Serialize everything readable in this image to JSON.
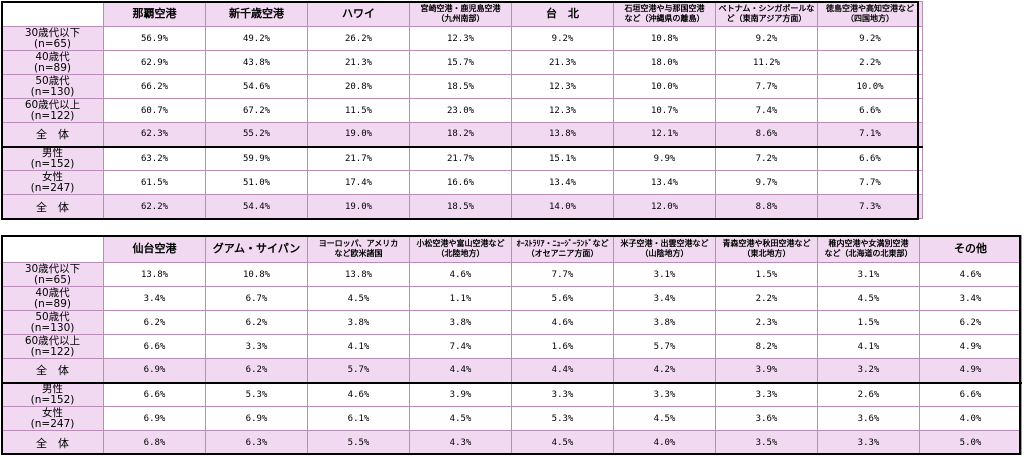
{
  "table1": {
    "headers": [
      "那覇空港",
      "新千歳空港",
      "ハワイ",
      "宮崎空港・鹿児島空港\n（九州南部）",
      "台　北",
      "石垣空港や与那国空港\nなど（沖縄県の離島）",
      "ベトナム・シンガポールな\nど（東南アジア方面）",
      "徳島空港や高知空港など\n（四国地方）"
    ],
    "rows": [
      {
        "label": "30歳代以下\n(n=65)",
        "values": [
          "56.9%",
          "49.2%",
          "26.2%",
          "12.3%",
          "9.2%",
          "10.8%",
          "9.2%",
          "9.2%"
        ]
      },
      {
        "label": "40歳代\n(n=89)",
        "values": [
          "62.9%",
          "43.8%",
          "21.3%",
          "15.7%",
          "21.3%",
          "18.0%",
          "11.2%",
          "2.2%"
        ]
      },
      {
        "label": "50歳代\n(n=130)",
        "values": [
          "66.2%",
          "54.6%",
          "20.8%",
          "18.5%",
          "12.3%",
          "10.0%",
          "7.7%",
          "10.0%"
        ]
      },
      {
        "label": "60歳代以上\n(n=122)",
        "values": [
          "60.7%",
          "67.2%",
          "11.5%",
          "23.0%",
          "12.3%",
          "10.7%",
          "7.4%",
          "6.6%"
        ]
      },
      {
        "label": "全　体",
        "values": [
          "62.3%",
          "55.2%",
          "19.0%",
          "18.2%",
          "13.8%",
          "12.1%",
          "8.6%",
          "7.1%"
        ]
      },
      {
        "label": "男性\n(n=152)",
        "values": [
          "63.2%",
          "59.9%",
          "21.7%",
          "21.7%",
          "15.1%",
          "9.9%",
          "7.2%",
          "6.6%"
        ]
      },
      {
        "label": "女性\n(n=247)",
        "values": [
          "61.5%",
          "51.0%",
          "17.4%",
          "16.6%",
          "13.4%",
          "13.4%",
          "9.7%",
          "7.7%"
        ]
      },
      {
        "label": "全　体",
        "values": [
          "62.2%",
          "54.4%",
          "19.0%",
          "18.5%",
          "14.0%",
          "12.0%",
          "8.8%",
          "7.3%"
        ]
      }
    ]
  },
  "table2": {
    "headers": [
      "仙台空港",
      "グアム・サイパン",
      "ヨーロッパ、アメリカ\nなど欧米諸国",
      "小松空港や富山空港など\n（北陸地方）",
      "ｵｰｽﾄﾗﾘｱ・ﾆｭｰｼﾞｰﾗﾝﾄﾞなど\n（オセアニア方面）",
      "米子空港・出雲空港など\n（山陰地方）",
      "青森空港や秋田空港など\n（東北地方）",
      "稚内空港や女満別空港\nなど（北海道の北東部）",
      "その他"
    ],
    "rows": [
      {
        "label": "30歳代以下\n(n=65)",
        "values": [
          "13.8%",
          "10.8%",
          "13.8%",
          "4.6%",
          "7.7%",
          "3.1%",
          "1.5%",
          "3.1%",
          "4.6%"
        ]
      },
      {
        "label": "40歳代\n(n=89)",
        "values": [
          "3.4%",
          "6.7%",
          "4.5%",
          "1.1%",
          "5.6%",
          "3.4%",
          "2.2%",
          "4.5%",
          "3.4%"
        ]
      },
      {
        "label": "50歳代\n(n=130)",
        "values": [
          "6.2%",
          "6.2%",
          "3.8%",
          "3.8%",
          "4.6%",
          "3.8%",
          "2.3%",
          "1.5%",
          "6.2%"
        ]
      },
      {
        "label": "60歳代以上\n(n=122)",
        "values": [
          "6.6%",
          "3.3%",
          "4.1%",
          "7.4%",
          "1.6%",
          "5.7%",
          "8.2%",
          "4.1%",
          "4.9%"
        ]
      },
      {
        "label": "全　体",
        "values": [
          "6.9%",
          "6.2%",
          "5.7%",
          "4.4%",
          "4.4%",
          "4.2%",
          "3.9%",
          "3.2%",
          "4.9%"
        ]
      },
      {
        "label": "男性\n(n=152)",
        "values": [
          "6.6%",
          "5.3%",
          "4.6%",
          "3.9%",
          "3.3%",
          "3.3%",
          "3.3%",
          "2.6%",
          "6.6%"
        ]
      },
      {
        "label": "女性\n(n=247)",
        "values": [
          "6.9%",
          "6.9%",
          "6.1%",
          "4.5%",
          "5.3%",
          "4.5%",
          "3.6%",
          "3.6%",
          "4.0%"
        ]
      },
      {
        "label": "全　体",
        "values": [
          "6.8%",
          "6.3%",
          "5.5%",
          "4.3%",
          "4.5%",
          "4.0%",
          "3.5%",
          "3.3%",
          "5.0%"
        ]
      }
    ]
  },
  "colors": {
    "header_bg": "#f2d9f2",
    "border": "#b98cb9",
    "frame": "#000000"
  }
}
